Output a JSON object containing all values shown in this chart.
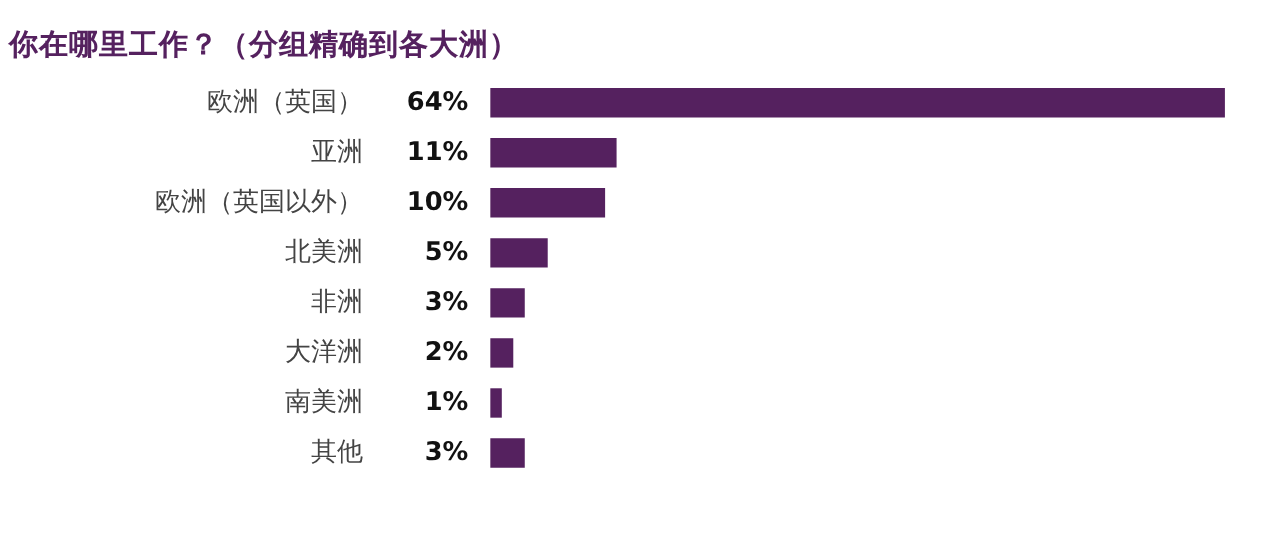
{
  "chart_data": {
    "type": "bar",
    "orientation": "horizontal",
    "title": "你在哪里工作？（分组精确到各大洲）",
    "categories": [
      "欧洲（英国）",
      "亚洲",
      "欧洲（英国以外）",
      "北美洲",
      "非洲",
      "大洋洲",
      "南美洲",
      "其他"
    ],
    "values": [
      64,
      11,
      10,
      5,
      3,
      2,
      1,
      3
    ],
    "value_labels": [
      "64%",
      "11%",
      "10%",
      "5%",
      "3%",
      "2%",
      "1%",
      "3%"
    ],
    "color": "#55215f",
    "grid": false
  }
}
